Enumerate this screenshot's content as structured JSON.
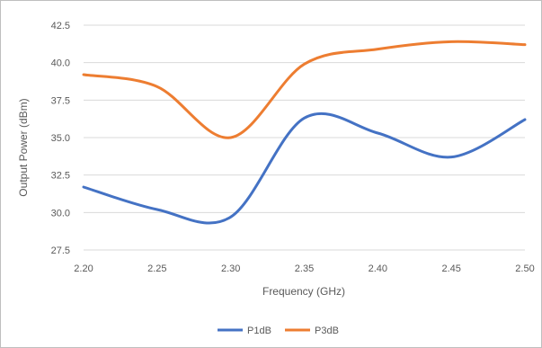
{
  "chart_data": {
    "type": "line",
    "title": "",
    "xlabel": "Frequency (GHz)",
    "ylabel": "Output Power (dBm)",
    "xlim": [
      2.2,
      2.5
    ],
    "ylim": [
      27.5,
      42.5
    ],
    "x_ticks": [
      "2.20",
      "2.25",
      "2.30",
      "2.35",
      "2.40",
      "2.45",
      "2.50"
    ],
    "y_ticks": [
      "27.5",
      "30.0",
      "32.5",
      "35.0",
      "37.5",
      "40.0",
      "42.5"
    ],
    "grid": "horizontal",
    "legend_position": "bottom",
    "series": [
      {
        "name": "P1dB",
        "color": "#4472c4",
        "x": [
          2.2,
          2.25,
          2.3,
          2.35,
          2.4,
          2.45,
          2.5
        ],
        "values": [
          31.7,
          30.2,
          29.7,
          36.3,
          35.3,
          33.7,
          36.2
        ]
      },
      {
        "name": "P3dB",
        "color": "#ed7d31",
        "x": [
          2.2,
          2.25,
          2.3,
          2.35,
          2.4,
          2.45,
          2.5
        ],
        "values": [
          39.2,
          38.4,
          35.0,
          39.9,
          40.9,
          41.4,
          41.2
        ]
      }
    ]
  }
}
